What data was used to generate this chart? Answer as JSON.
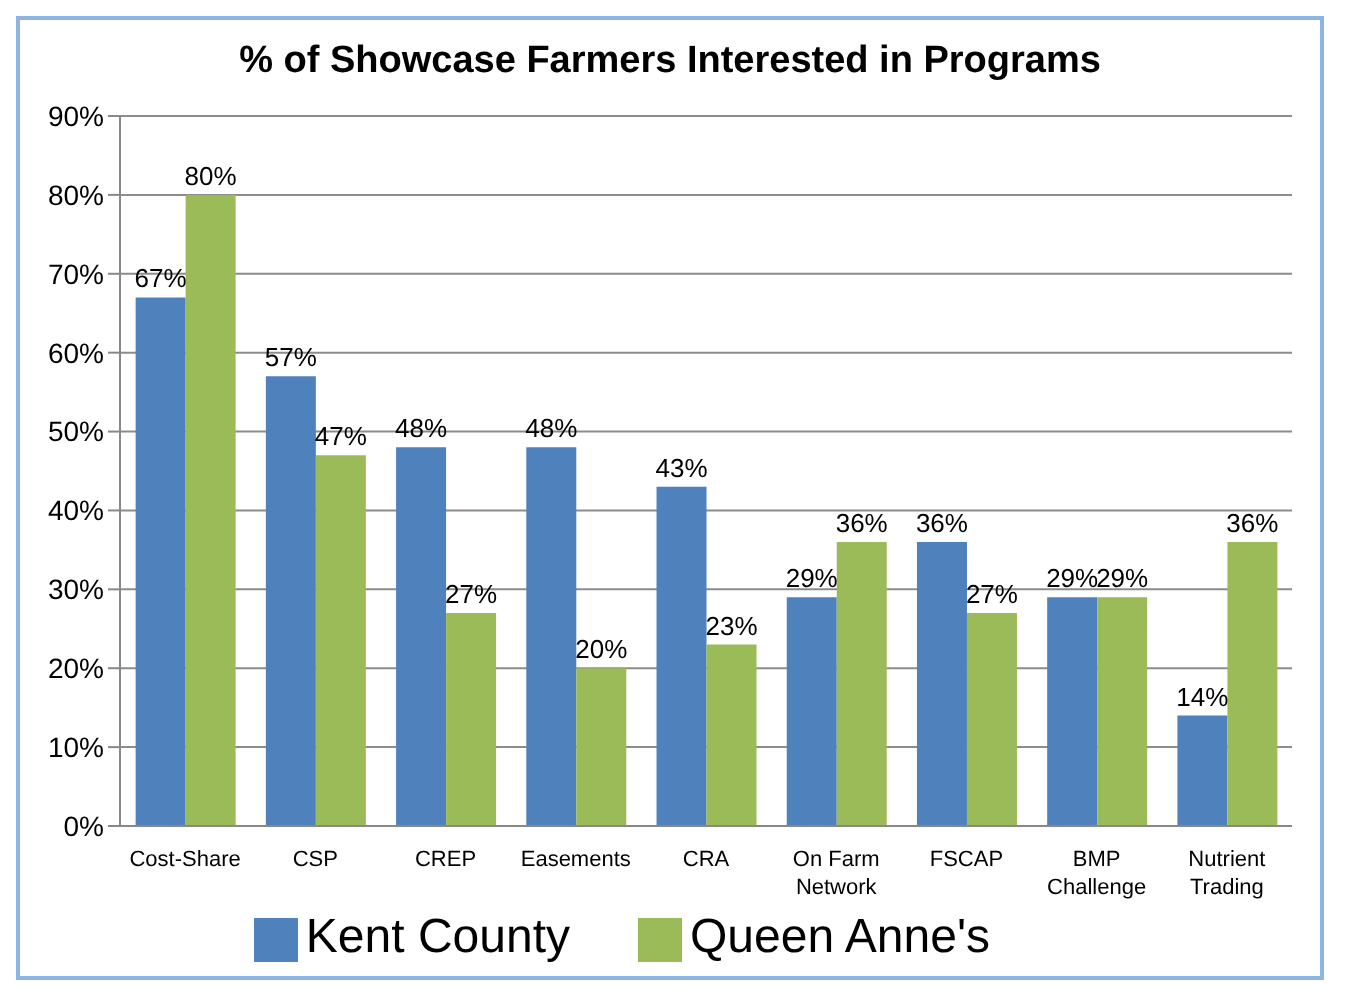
{
  "chart_data": {
    "type": "bar",
    "title": "% of Showcase Farmers Interested in Programs",
    "categories": [
      "Cost-Share",
      "CSP",
      "CREP",
      "Easements",
      "CRA",
      "On Farm Network",
      "FSCAP",
      "BMP Challenge",
      "Nutrient Trading"
    ],
    "series": [
      {
        "name": "Kent County",
        "color": "#4f81bd",
        "values": [
          67,
          57,
          48,
          48,
          43,
          29,
          36,
          29,
          14
        ],
        "value_labels": [
          "67%",
          "57%",
          "48%",
          "48%",
          "43%",
          "29%",
          "36%",
          "29%",
          "14%"
        ]
      },
      {
        "name": "Queen Anne's",
        "color": "#9bbb59",
        "values": [
          80,
          47,
          27,
          20,
          23,
          36,
          27,
          29,
          36
        ],
        "value_labels": [
          "80%",
          "47%",
          "27%",
          "20%",
          "23%",
          "36%",
          "27%",
          "29%",
          "36%"
        ]
      }
    ],
    "ylim": [
      0,
      90
    ],
    "yticks": [
      {
        "value": 0,
        "label": "0%"
      },
      {
        "value": 10,
        "label": "10%"
      },
      {
        "value": 20,
        "label": "20%"
      },
      {
        "value": 30,
        "label": "30%"
      },
      {
        "value": 40,
        "label": "40%"
      },
      {
        "value": 50,
        "label": "50%"
      },
      {
        "value": 60,
        "label": "60%"
      },
      {
        "value": 70,
        "label": "70%"
      },
      {
        "value": 80,
        "label": "80%"
      },
      {
        "value": 90,
        "label": "90%"
      }
    ],
    "grid": "y",
    "legend": "bottom"
  }
}
